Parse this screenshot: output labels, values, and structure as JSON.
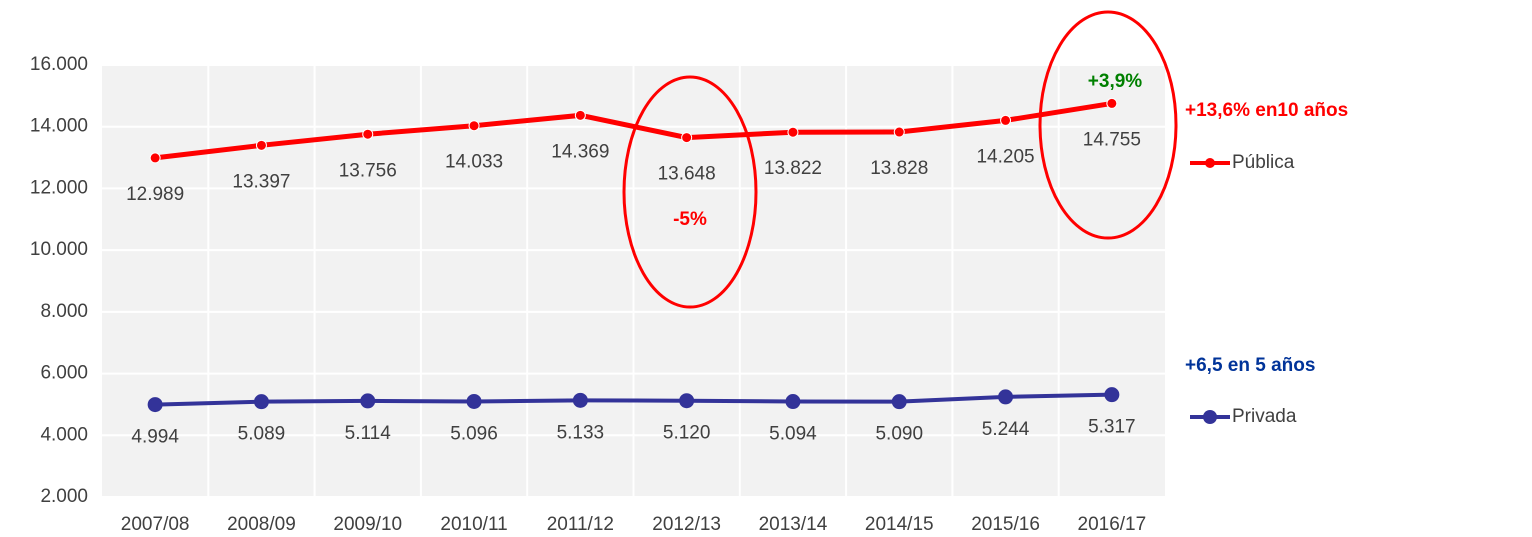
{
  "chart_data": {
    "type": "line",
    "categories": [
      "2007/08",
      "2008/09",
      "2009/10",
      "2010/11",
      "2011/12",
      "2012/13",
      "2013/14",
      "2014/15",
      "2015/16",
      "2016/17"
    ],
    "series": [
      {
        "name": "Pública",
        "color": "#ff0000",
        "values": [
          12989,
          13397,
          13756,
          14033,
          14369,
          13648,
          13822,
          13828,
          14205,
          14755
        ],
        "value_labels": [
          "12.989",
          "13.397",
          "13.756",
          "14.033",
          "14.369",
          "13.648",
          "13.822",
          "13.828",
          "14.205",
          "14.755"
        ]
      },
      {
        "name": "Privada",
        "color": "#333399",
        "values": [
          4994,
          5089,
          5114,
          5096,
          5133,
          5120,
          5094,
          5090,
          5244,
          5317
        ],
        "value_labels": [
          "4.994",
          "5.089",
          "5.114",
          "5.096",
          "5.133",
          "5.120",
          "5.094",
          "5.090",
          "5.244",
          "5.317"
        ]
      }
    ],
    "ylim": [
      2000,
      16000
    ],
    "yticks": [
      {
        "value": 2000,
        "label": "2.000"
      },
      {
        "value": 4000,
        "label": "4.000"
      },
      {
        "value": 6000,
        "label": "6.000"
      },
      {
        "value": 8000,
        "label": "8.000"
      },
      {
        "value": 10000,
        "label": "10.000"
      },
      {
        "value": 12000,
        "label": "12.000"
      },
      {
        "value": 14000,
        "label": "14.000"
      },
      {
        "value": 16000,
        "label": "16.000"
      }
    ],
    "grid": true,
    "legend": "right",
    "annotations": [
      {
        "text": "+13,6% en10 años",
        "color": "#ff0000"
      },
      {
        "text": "+6,5 en 5 años",
        "color": "#003399"
      },
      {
        "text": "-5%",
        "color": "#ff0000"
      },
      {
        "text": "+3,9%",
        "color": "#008000"
      }
    ]
  }
}
